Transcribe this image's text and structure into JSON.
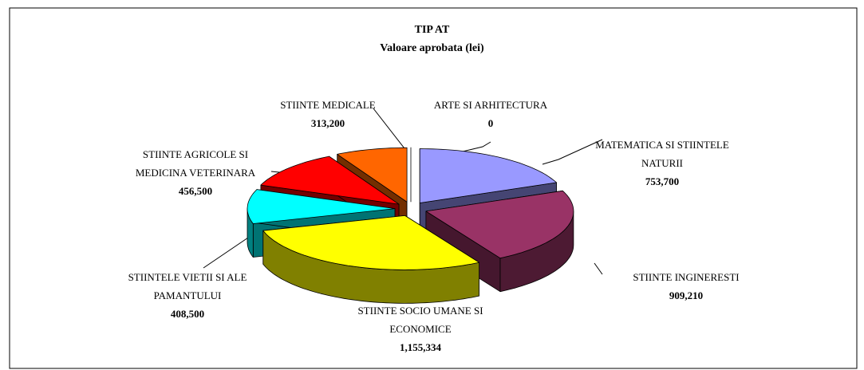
{
  "chart_data": {
    "type": "pie3d",
    "title": "TIP AT",
    "subtitle": "Valoare aprobata (lei)",
    "categories": [
      "MATEMATICA SI STIINTELE NATURII",
      "STIINTE INGINERESTI",
      "STIINTE SOCIO UMANE SI ECONOMICE",
      "STIINTELE VIETII SI ALE PAMANTULUI",
      "STIINTE AGRICOLE SI MEDICINA VETERINARA",
      "STIINTE MEDICALE",
      "ARTE SI ARHITECTURA"
    ],
    "values": [
      753700,
      909210,
      1155334,
      408500,
      456500,
      313200,
      0
    ],
    "value_labels": [
      "753,700",
      "909,210",
      "1,155,334",
      "408,500",
      "456,500",
      "313,200",
      "0"
    ],
    "colors": [
      "#9999ff",
      "#993366",
      "#ffff00",
      "#00ffff",
      "#ff0000",
      "#ff6600",
      "#ffffff"
    ]
  }
}
